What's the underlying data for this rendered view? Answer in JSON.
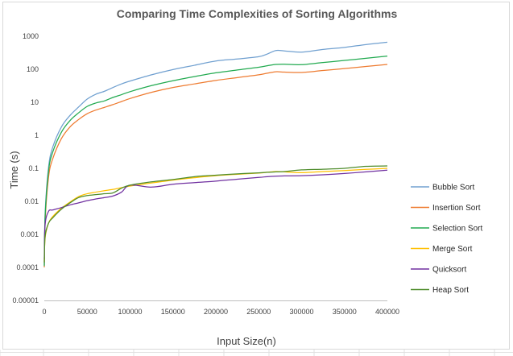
{
  "chart_data": {
    "type": "line",
    "title": "Comparing Time Complexities of Sorting Algorithms",
    "xlabel": "Input Size(n)",
    "ylabel": "Time (s)",
    "xlim": [
      0,
      400000
    ],
    "ylim": [
      1e-05,
      1000
    ],
    "yscale": "log",
    "grid": false,
    "legend_position": "right",
    "x_ticks": [
      "0",
      "50000",
      "100000",
      "150000",
      "200000",
      "250000",
      "300000",
      "350000",
      "400000"
    ],
    "y_ticks": [
      "0.00001",
      "0.0001",
      "0.001",
      "0.01",
      "0.1",
      "1",
      "10",
      "100",
      "1000"
    ],
    "x": [
      0,
      1000,
      5000,
      10000,
      20000,
      30000,
      40000,
      50000,
      60000,
      70000,
      80000,
      90000,
      100000,
      125000,
      150000,
      175000,
      200000,
      225000,
      250000,
      260000,
      270000,
      280000,
      300000,
      325000,
      350000,
      375000,
      400000
    ],
    "series": [
      {
        "name": "Bubble Sort",
        "color": "#70a0d0",
        "values": [
          0.00012,
          0.0045,
          0.11,
          0.45,
          1.8,
          4.0,
          7.2,
          12.5,
          17.5,
          21.5,
          28,
          36,
          44,
          68,
          98,
          132,
          178,
          205,
          240,
          290,
          370,
          360,
          330,
          400,
          460,
          560,
          660
        ]
      },
      {
        "name": "Insertion Sort",
        "color": "#ee7b30",
        "values": [
          0.0001,
          0.0025,
          0.055,
          0.2,
          0.8,
          1.8,
          3.0,
          4.5,
          5.8,
          7.0,
          8.5,
          10.5,
          13,
          20,
          28,
          36,
          46,
          56,
          68,
          76,
          84,
          82,
          80,
          92,
          105,
          122,
          140
        ]
      },
      {
        "name": "Selection Sort",
        "color": "#22aa50",
        "values": [
          0.00011,
          0.0035,
          0.085,
          0.32,
          1.25,
          2.8,
          4.8,
          7.5,
          9.5,
          11,
          14,
          17,
          21,
          32,
          45,
          60,
          78,
          95,
          115,
          128,
          140,
          142,
          138,
          160,
          185,
          215,
          250
        ]
      },
      {
        "name": "Merge Sort",
        "color": "#ffc000",
        "values": [
          0.00015,
          0.0008,
          0.0022,
          0.0035,
          0.0062,
          0.0095,
          0.014,
          0.017,
          0.019,
          0.021,
          0.023,
          0.026,
          0.029,
          0.036,
          0.044,
          0.052,
          0.06,
          0.066,
          0.072,
          0.076,
          0.08,
          0.078,
          0.074,
          0.08,
          0.086,
          0.093,
          0.1
        ]
      },
      {
        "name": "Quicksort",
        "color": "#7030a0",
        "values": [
          0.00018,
          0.002,
          0.005,
          0.0055,
          0.0065,
          0.0078,
          0.009,
          0.0105,
          0.0118,
          0.013,
          0.0145,
          0.019,
          0.031,
          0.027,
          0.033,
          0.037,
          0.041,
          0.047,
          0.053,
          0.056,
          0.058,
          0.059,
          0.06,
          0.064,
          0.07,
          0.078,
          0.088
        ]
      },
      {
        "name": "Heap Sort",
        "color": "#4e8c2c",
        "values": [
          0.00014,
          0.0009,
          0.0022,
          0.0032,
          0.0058,
          0.009,
          0.013,
          0.015,
          0.016,
          0.017,
          0.018,
          0.025,
          0.031,
          0.039,
          0.046,
          0.056,
          0.062,
          0.068,
          0.073,
          0.076,
          0.078,
          0.08,
          0.09,
          0.094,
          0.1,
          0.115,
          0.118
        ]
      }
    ]
  }
}
